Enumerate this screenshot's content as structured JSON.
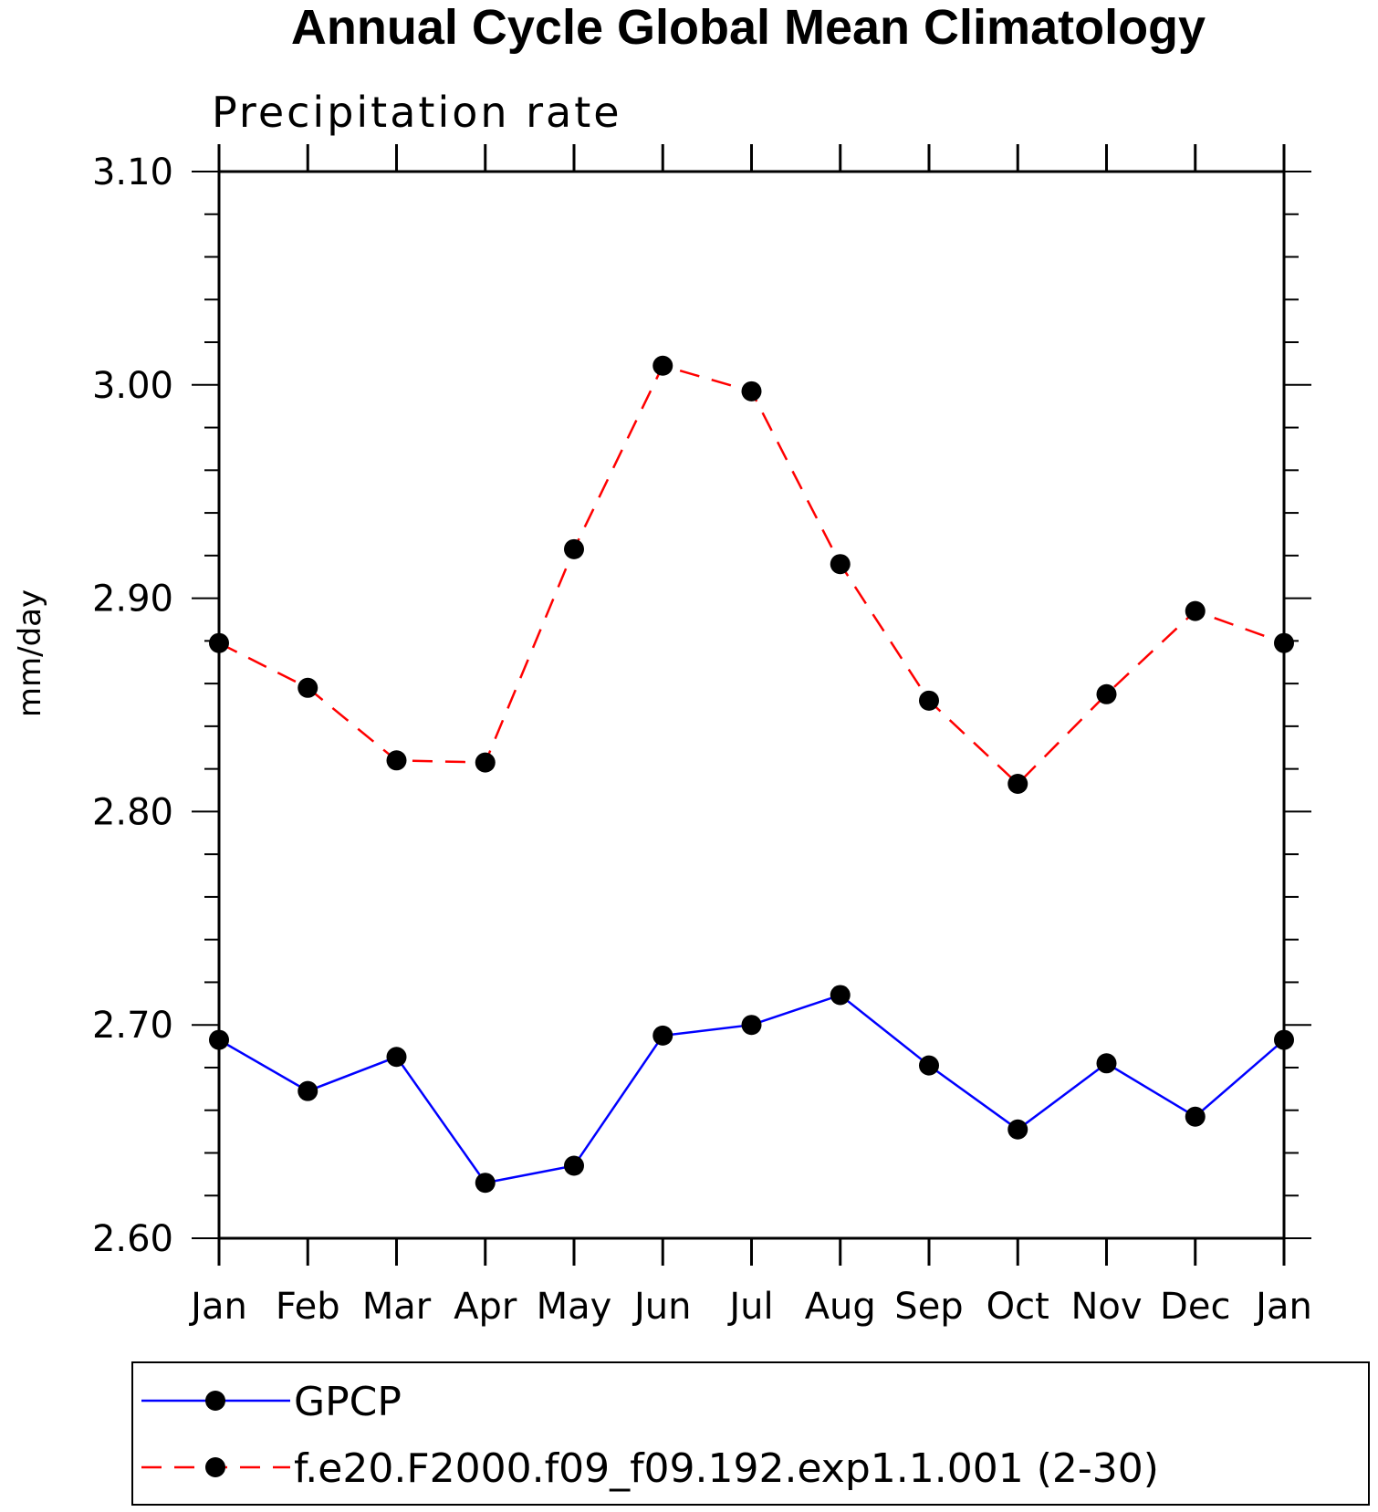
{
  "chart_data": {
    "type": "line",
    "title": "Annual Cycle Global Mean Climatology",
    "subtitle": "Precipitation rate",
    "ylabel": "mm/day",
    "xlabel": "",
    "categories": [
      "Jan",
      "Feb",
      "Mar",
      "Apr",
      "May",
      "Jun",
      "Jul",
      "Aug",
      "Sep",
      "Oct",
      "Nov",
      "Dec",
      "Jan"
    ],
    "ylim": [
      2.6,
      3.1
    ],
    "yticks": [
      "2.60",
      "2.70",
      "2.80",
      "2.90",
      "3.00",
      "3.10"
    ],
    "yminor_step": 0.02,
    "grid": false,
    "legend_position": "bottom",
    "series": [
      {
        "name": "GPCP",
        "color": "#0000ff",
        "line_style": "solid",
        "marker": "filled-circle",
        "values": [
          2.693,
          2.669,
          2.685,
          2.626,
          2.634,
          2.695,
          2.7,
          2.714,
          2.681,
          2.651,
          2.682,
          2.657,
          2.693
        ]
      },
      {
        "name": "f.e20.F2000.f09_f09.192.exp1.1.001 (2-30)",
        "color": "#ff0000",
        "line_style": "dashed",
        "marker": "filled-circle",
        "values": [
          2.879,
          2.858,
          2.824,
          2.823,
          2.923,
          3.009,
          2.997,
          2.916,
          2.852,
          2.813,
          2.855,
          2.894,
          2.879
        ]
      }
    ]
  }
}
